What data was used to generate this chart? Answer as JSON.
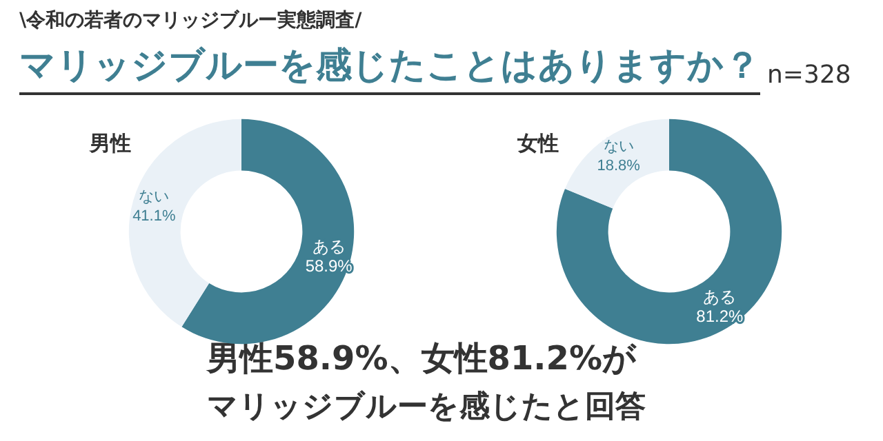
{
  "chart_data": [
    {
      "type": "other",
      "subtitle": "\\令和の若者のマリッジブルー実態調査/",
      "title": "マリッジブルーを感じたことはありますか？",
      "annotations": [
        "n=328",
        "男性58.9%、女性81.2%が",
        "マリッジブルーを感じたと回答"
      ]
    },
    {
      "type": "donut",
      "title": "男性",
      "categories": [
        "ある",
        "ない"
      ],
      "values": [
        58.9,
        41.1
      ],
      "colors": [
        "#3f7f92",
        "#eaf1f7"
      ],
      "value_labels": [
        "58.9%",
        "41.1%"
      ]
    },
    {
      "type": "donut",
      "title": "女性",
      "categories": [
        "ある",
        "ない"
      ],
      "values": [
        81.2,
        18.8
      ],
      "colors": [
        "#3f7f92",
        "#eaf1f7"
      ],
      "value_labels": [
        "81.2%",
        "18.8%"
      ]
    }
  ]
}
